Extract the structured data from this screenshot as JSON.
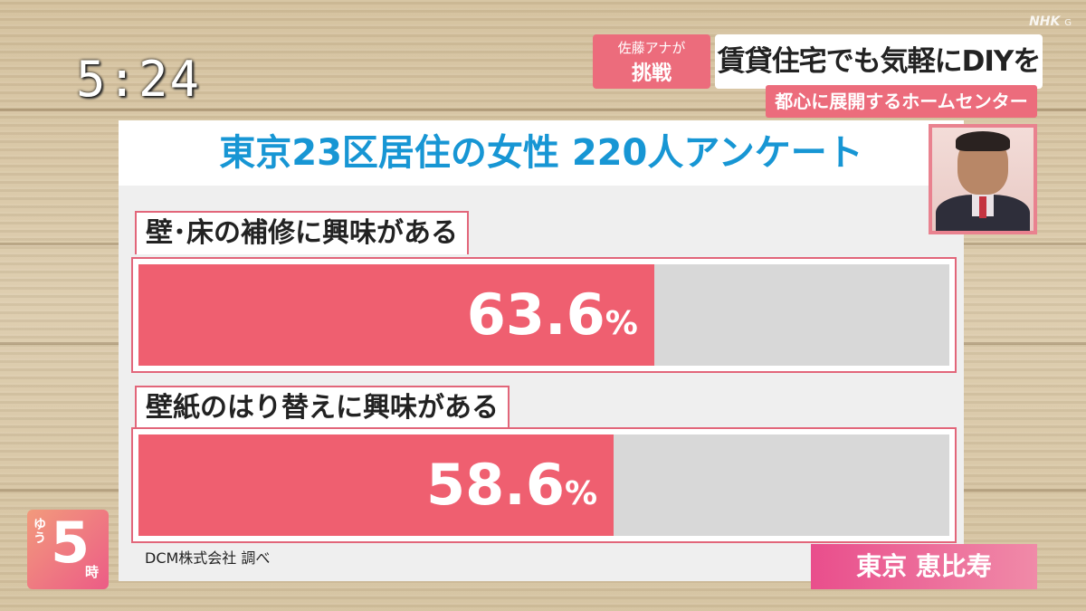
{
  "broadcast": {
    "time": "5:24",
    "network": "NHK",
    "channel": "G"
  },
  "segment": {
    "challenge_who": "佐藤アナが",
    "challenge_what": "挑戦",
    "headline": "賃貸住宅でも気軽にDIYを",
    "subheadline": "都心に展開するホームセンター"
  },
  "chart_data": {
    "type": "bar",
    "title": "東京23区居住の女性 220人アンケート",
    "orientation": "horizontal",
    "categories": [
      "壁･床の補修に興味がある",
      "壁紙のはり替えに興味がある"
    ],
    "values": [
      63.6,
      58.6
    ],
    "value_labels": [
      "63.6",
      "58.6"
    ],
    "unit": "%",
    "xlim": [
      0,
      100
    ],
    "source": "DCM株式会社 調べ",
    "colors": {
      "fill": "#ef5f70",
      "track": "#d8d8d8",
      "title": "#1796d4",
      "frame": "#e2667a"
    }
  },
  "program": {
    "logo_small": "ゆう",
    "logo_number": "5",
    "logo_suffix": "時",
    "location": "東京 恵比寿"
  }
}
